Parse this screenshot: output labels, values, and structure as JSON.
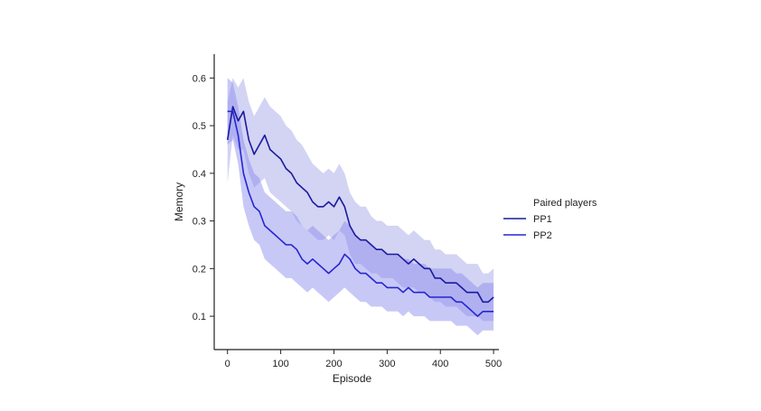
{
  "chart_data": {
    "type": "line",
    "title": "",
    "xlabel": "Episode",
    "ylabel": "Memory",
    "xlim": [
      -25,
      510
    ],
    "ylim": [
      0.03,
      0.65
    ],
    "xticks": [
      0,
      100,
      200,
      300,
      400,
      500
    ],
    "xtick_labels": [
      "0",
      "100",
      "200",
      "300",
      "400",
      "500"
    ],
    "yticks": [
      0.1,
      0.2,
      0.3,
      0.4,
      0.5,
      0.6
    ],
    "ytick_labels": [
      "0.1",
      "0.2",
      "0.3",
      "0.4",
      "0.5",
      "0.6"
    ],
    "grid": false,
    "legend": {
      "title": "Paired players",
      "position": "right"
    },
    "x": [
      0,
      10,
      20,
      30,
      40,
      50,
      60,
      70,
      80,
      90,
      100,
      110,
      120,
      130,
      140,
      150,
      160,
      170,
      180,
      190,
      200,
      210,
      220,
      230,
      240,
      250,
      260,
      270,
      280,
      290,
      300,
      310,
      320,
      330,
      340,
      350,
      360,
      370,
      380,
      390,
      400,
      410,
      420,
      430,
      440,
      450,
      460,
      470,
      480,
      490,
      500
    ],
    "series": [
      {
        "name": "PP1",
        "color": "#1a1a9e",
        "band_color": "#9d9de6",
        "values": [
          0.47,
          0.54,
          0.51,
          0.53,
          0.47,
          0.44,
          0.46,
          0.48,
          0.45,
          0.44,
          0.43,
          0.41,
          0.4,
          0.38,
          0.37,
          0.36,
          0.34,
          0.33,
          0.33,
          0.34,
          0.33,
          0.35,
          0.33,
          0.29,
          0.27,
          0.26,
          0.26,
          0.25,
          0.24,
          0.24,
          0.23,
          0.23,
          0.23,
          0.22,
          0.21,
          0.22,
          0.21,
          0.2,
          0.2,
          0.18,
          0.18,
          0.17,
          0.17,
          0.17,
          0.16,
          0.15,
          0.15,
          0.15,
          0.13,
          0.13,
          0.14
        ],
        "lower": [
          0.38,
          0.48,
          0.45,
          0.45,
          0.4,
          0.37,
          0.38,
          0.39,
          0.36,
          0.35,
          0.34,
          0.33,
          0.32,
          0.3,
          0.29,
          0.28,
          0.27,
          0.26,
          0.26,
          0.27,
          0.26,
          0.28,
          0.27,
          0.23,
          0.21,
          0.21,
          0.2,
          0.19,
          0.19,
          0.18,
          0.18,
          0.18,
          0.17,
          0.16,
          0.16,
          0.16,
          0.15,
          0.15,
          0.14,
          0.13,
          0.13,
          0.12,
          0.12,
          0.12,
          0.11,
          0.1,
          0.1,
          0.1,
          0.09,
          0.09,
          0.09
        ],
        "upper": [
          0.55,
          0.6,
          0.58,
          0.6,
          0.55,
          0.52,
          0.54,
          0.56,
          0.54,
          0.53,
          0.52,
          0.5,
          0.49,
          0.47,
          0.46,
          0.44,
          0.42,
          0.41,
          0.4,
          0.41,
          0.4,
          0.42,
          0.4,
          0.36,
          0.34,
          0.33,
          0.33,
          0.31,
          0.3,
          0.3,
          0.29,
          0.29,
          0.29,
          0.28,
          0.27,
          0.28,
          0.27,
          0.26,
          0.26,
          0.24,
          0.24,
          0.23,
          0.23,
          0.23,
          0.22,
          0.21,
          0.21,
          0.21,
          0.19,
          0.19,
          0.2
        ]
      },
      {
        "name": "PP2",
        "color": "#2626d1",
        "band_color": "#8585ed",
        "values": [
          0.53,
          0.53,
          0.48,
          0.4,
          0.36,
          0.33,
          0.32,
          0.29,
          0.28,
          0.27,
          0.26,
          0.25,
          0.25,
          0.24,
          0.22,
          0.21,
          0.22,
          0.21,
          0.2,
          0.19,
          0.2,
          0.21,
          0.23,
          0.22,
          0.2,
          0.19,
          0.19,
          0.18,
          0.17,
          0.17,
          0.16,
          0.16,
          0.16,
          0.15,
          0.16,
          0.15,
          0.15,
          0.15,
          0.14,
          0.14,
          0.14,
          0.14,
          0.14,
          0.13,
          0.13,
          0.12,
          0.11,
          0.1,
          0.11,
          0.11,
          0.11
        ],
        "lower": [
          0.46,
          0.47,
          0.42,
          0.33,
          0.29,
          0.26,
          0.25,
          0.22,
          0.21,
          0.2,
          0.19,
          0.18,
          0.18,
          0.17,
          0.16,
          0.15,
          0.16,
          0.15,
          0.14,
          0.13,
          0.14,
          0.15,
          0.16,
          0.15,
          0.14,
          0.13,
          0.13,
          0.12,
          0.12,
          0.12,
          0.11,
          0.11,
          0.11,
          0.1,
          0.11,
          0.1,
          0.1,
          0.1,
          0.09,
          0.09,
          0.09,
          0.09,
          0.09,
          0.08,
          0.08,
          0.08,
          0.07,
          0.06,
          0.07,
          0.07,
          0.07
        ],
        "upper": [
          0.6,
          0.59,
          0.54,
          0.47,
          0.43,
          0.4,
          0.39,
          0.36,
          0.35,
          0.34,
          0.33,
          0.32,
          0.32,
          0.31,
          0.29,
          0.28,
          0.29,
          0.28,
          0.27,
          0.26,
          0.27,
          0.28,
          0.3,
          0.29,
          0.27,
          0.26,
          0.26,
          0.25,
          0.24,
          0.24,
          0.23,
          0.23,
          0.23,
          0.22,
          0.22,
          0.21,
          0.21,
          0.21,
          0.2,
          0.2,
          0.2,
          0.2,
          0.2,
          0.19,
          0.19,
          0.18,
          0.17,
          0.16,
          0.17,
          0.17,
          0.17
        ]
      }
    ]
  }
}
